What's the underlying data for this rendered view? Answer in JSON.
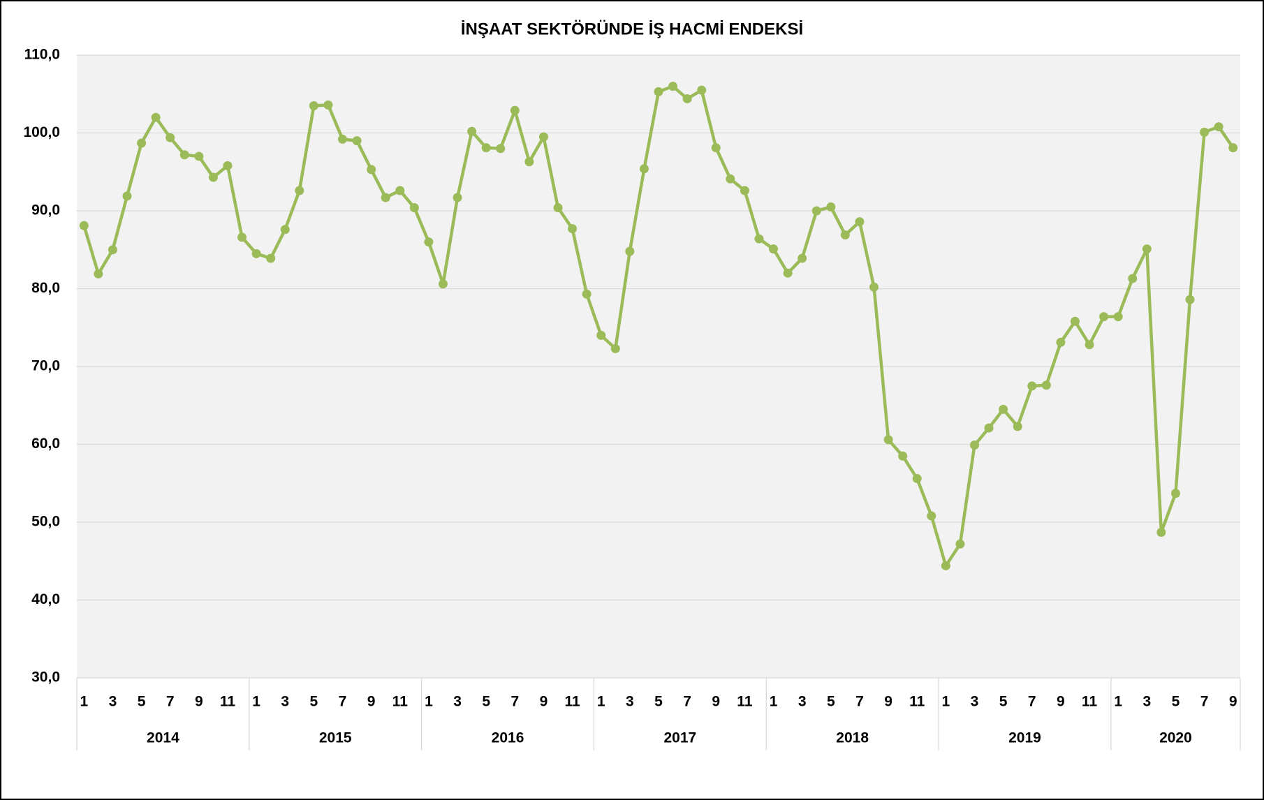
{
  "chart_data": {
    "type": "line",
    "title": "İNŞAAT SEKTÖRÜNDE İŞ HACMİ ENDEKSİ",
    "categories": [
      "1",
      null,
      "3",
      null,
      "5",
      null,
      "7",
      null,
      "9",
      null,
      "11",
      null,
      "1",
      null,
      "3",
      null,
      "5",
      null,
      "7",
      null,
      "9",
      null,
      "11",
      null,
      "1",
      null,
      "3",
      null,
      "5",
      null,
      "7",
      null,
      "9",
      null,
      "11",
      null,
      "1",
      null,
      "3",
      null,
      "5",
      null,
      "7",
      null,
      "9",
      null,
      "11",
      null,
      "1",
      null,
      "3",
      null,
      "5",
      null,
      "7",
      null,
      "9",
      null,
      "11",
      null,
      "1",
      null,
      "3",
      null,
      "5",
      null,
      "7",
      null,
      "9",
      null,
      "11",
      null,
      "1",
      null,
      "3",
      null,
      "5",
      null,
      "7",
      null,
      "9"
    ],
    "years": [
      "2014",
      "2015",
      "2016",
      "2017",
      "2018",
      "2019",
      "2020"
    ],
    "values": [
      88.1,
      81.9,
      85.0,
      91.9,
      98.7,
      102.0,
      99.4,
      97.2,
      97.0,
      94.3,
      95.8,
      86.6,
      84.5,
      83.9,
      87.6,
      92.6,
      103.5,
      103.6,
      99.2,
      99.0,
      95.3,
      91.7,
      92.6,
      90.4,
      86.0,
      80.6,
      91.7,
      100.2,
      98.1,
      98.0,
      102.9,
      96.3,
      99.5,
      90.4,
      87.7,
      79.3,
      74.0,
      72.3,
      84.8,
      95.4,
      105.3,
      106.0,
      104.4,
      105.5,
      98.1,
      94.1,
      92.6,
      86.4,
      85.1,
      82.0,
      83.9,
      90.0,
      90.5,
      86.9,
      88.6,
      80.2,
      60.6,
      58.5,
      55.6,
      50.8,
      44.4,
      47.2,
      59.9,
      62.1,
      64.5,
      62.3,
      67.5,
      67.6,
      73.1,
      75.8,
      72.8,
      76.4,
      76.4,
      81.3,
      85.1,
      48.7,
      53.7,
      78.6,
      100.1,
      100.8,
      98.1
    ],
    "color": "#9bbb59",
    "ylim": [
      30,
      110
    ],
    "yticks": [
      {
        "value": 30,
        "label": "30,0"
      },
      {
        "value": 40,
        "label": "40,0"
      },
      {
        "value": 50,
        "label": "50,0"
      },
      {
        "value": 60,
        "label": "60,0"
      },
      {
        "value": 70,
        "label": "70,0"
      },
      {
        "value": 80,
        "label": "80,0"
      },
      {
        "value": 90,
        "label": "90,0"
      },
      {
        "value": 100,
        "label": "100,0"
      },
      {
        "value": 110,
        "label": "110,0"
      }
    ],
    "grid": true
  }
}
